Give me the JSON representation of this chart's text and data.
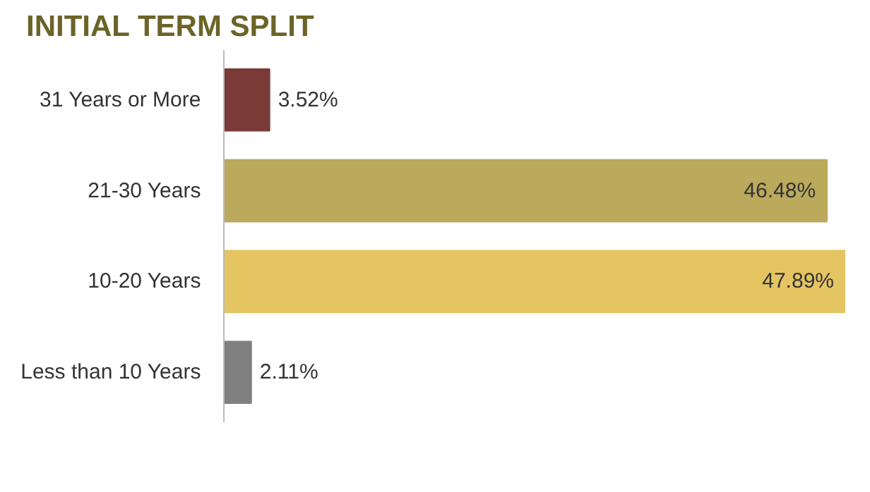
{
  "chart_data": {
    "type": "bar",
    "orientation": "horizontal",
    "title": "INITIAL TERM SPLIT",
    "categories": [
      "31 Years or More",
      "21-30 Years",
      "10-20 Years",
      "Less than 10 Years"
    ],
    "values": [
      3.52,
      46.48,
      47.89,
      2.11
    ],
    "colors": [
      "#7a3a38",
      "#bba95c",
      "#e5c462",
      "#808080"
    ],
    "value_labels": [
      "3.52%",
      "46.48%",
      "47.89%",
      "2.11%"
    ],
    "grid": false
  }
}
